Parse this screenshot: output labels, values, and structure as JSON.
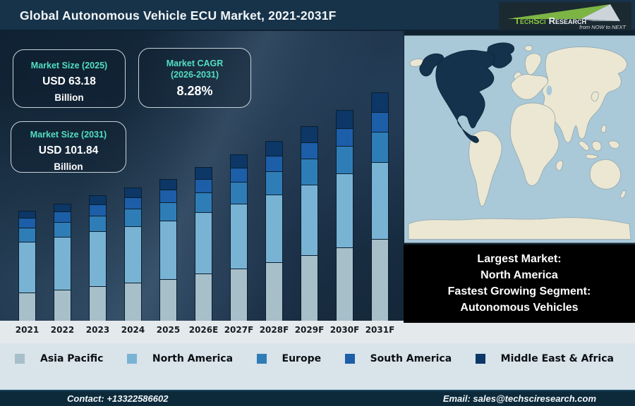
{
  "header": {
    "title": "Global Autonomous Vehicle ECU Market, 2021-2031F",
    "logo": {
      "brand": "TechSci",
      "brand2": "Research",
      "tagline": "from NOW to NEXT"
    }
  },
  "stat_boxes": [
    {
      "label": "Market Size (2025)",
      "value": "USD 63.18",
      "unit": "Billion"
    },
    {
      "label_line1": "Market CAGR",
      "label_line2": "(2026-2031)",
      "value": "8.28%"
    },
    {
      "label": "Market Size (2031)",
      "value": "USD 101.84",
      "unit": "Billion"
    }
  ],
  "chart_data": {
    "type": "bar",
    "stacked": true,
    "title": "Global Autonomous Vehicle ECU Market, 2021-2031F",
    "unit": "USD Billion",
    "categories": [
      "2021",
      "2022",
      "2023",
      "2024",
      "2025",
      "2026E",
      "2027F",
      "2028F",
      "2029F",
      "2030F",
      "2031F"
    ],
    "series": [
      {
        "name": "Asia Pacific",
        "color": "#a7bfc9",
        "values": [
          12.2,
          13.6,
          15.1,
          16.7,
          18.4,
          20.7,
          23.2,
          25.9,
          29.0,
          32.4,
          36.2
        ]
      },
      {
        "name": "North America",
        "color": "#79b3d4",
        "values": [
          22.7,
          23.6,
          24.5,
          25.4,
          26.2,
          27.5,
          28.9,
          30.2,
          31.7,
          33.1,
          34.6
        ]
      },
      {
        "name": "Europe",
        "color": "#2f7db6",
        "values": [
          6.4,
          6.8,
          7.2,
          7.7,
          8.2,
          9.0,
          9.7,
          10.5,
          11.5,
          12.4,
          13.5
        ]
      },
      {
        "name": "South America",
        "color": "#1c5ea8",
        "values": [
          4.4,
          4.6,
          5.0,
          5.2,
          5.5,
          5.9,
          6.4,
          6.9,
          7.4,
          8.0,
          8.6
        ]
      },
      {
        "name": "Middle East & Africa",
        "color": "#0c3766",
        "values": [
          3.2,
          3.6,
          3.9,
          4.4,
          4.8,
          5.3,
          5.9,
          6.7,
          7.3,
          8.2,
          9.0
        ]
      }
    ],
    "estimated_totals": [
      48.9,
      52.2,
      55.7,
      59.4,
      63.18,
      68.41,
      74.08,
      80.21,
      86.85,
      94.04,
      101.84
    ],
    "anchors": {
      "market_size_2025_usd_b": 63.18,
      "market_size_2031_usd_b": 101.84,
      "cagr_2026_2031_pct": 8.28
    },
    "legend_position": "bottom",
    "y_axis_visible": false,
    "gridlines": false
  },
  "map": {
    "highlighted_region": "North America",
    "ocean_color": "#a9c8d8",
    "land_color": "#ece7d2",
    "highlight_color": "#14324b"
  },
  "callout": {
    "lines": [
      "Largest Market:",
      "North America",
      "Fastest Growing Segment:",
      "Autonomous Vehicles"
    ]
  },
  "footer": {
    "contact": "Contact: +13322586602",
    "email": "Email: sales@techsciresearch.com"
  },
  "colors": {
    "accent_teal": "#52dfc3",
    "title_bar_bg": "#17334a",
    "chart_bg": "#16293c",
    "footer_bg": "#0d2a3b",
    "logo_green": "#7cb544"
  }
}
